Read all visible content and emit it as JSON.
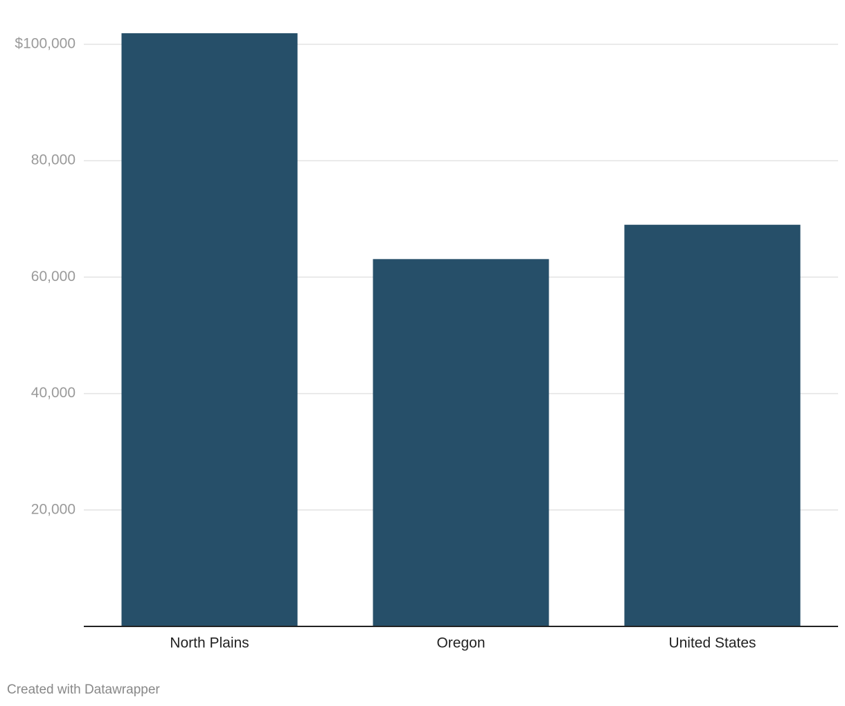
{
  "chart_data": {
    "type": "bar",
    "categories": [
      "North Plains",
      "Oregon",
      "United States"
    ],
    "values": [
      101900,
      63100,
      69000
    ],
    "color": "#264f69",
    "ylim": [
      0,
      102000
    ],
    "yticks": [
      {
        "value": 20000,
        "label": "20,000"
      },
      {
        "value": 40000,
        "label": "40,000"
      },
      {
        "value": 60000,
        "label": "60,000"
      },
      {
        "value": 80000,
        "label": "80,000"
      },
      {
        "value": 100000,
        "label": "$100,000"
      }
    ],
    "grid": true,
    "credit": "Created with Datawrapper"
  }
}
